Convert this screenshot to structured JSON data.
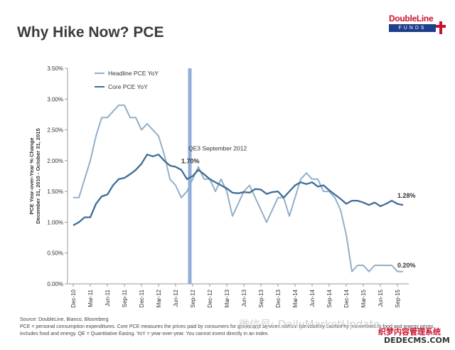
{
  "title": "Why Hike Now? PCE",
  "logo": {
    "top": "DoubleLine",
    "bottom": "FUNDS"
  },
  "footer": {
    "source": "Source: DoubleLine, Bianco, Bloomberg",
    "note1": "PCE = personal consumption expenditures. Core PCE measures the prices paid by consumers for goods and services without the volatility caused by movements in food and energy prices.",
    "note2": "includes food and energy. QE = Quantitative Easing. YoY = year-over-year. You cannot invest directly in an index.",
    "watermark": "微信号: DailyMarketUpdate",
    "watermark2": "织梦内容管理系统",
    "watermark3": "DEDECMS.COM"
  },
  "colors": {
    "headline": "#93afc9",
    "core": "#3f6d96",
    "qe_line": "#7f9fd1",
    "axis": "#999999"
  },
  "chart_data": {
    "type": "line",
    "ylabel": "PCE Year-over-Year % Change\nDecember 31, 2010 - October 31, 2015",
    "ylim": [
      0.0,
      3.5
    ],
    "yticks": [
      "0.00%",
      "0.50%",
      "1.00%",
      "1.50%",
      "2.00%",
      "2.50%",
      "3.00%",
      "3.50%"
    ],
    "x_ticks": [
      "Dec-10",
      "Mar-11",
      "Jun-11",
      "Sep-11",
      "Dec-11",
      "Mar-12",
      "Jun-12",
      "Sep-12",
      "Dec-12",
      "Mar-13",
      "Jun-13",
      "Sep-13",
      "Dec-13",
      "Mar-14",
      "Jun-14",
      "Sep-14",
      "Dec-14",
      "Mar-15",
      "Jun-15",
      "Sep-15"
    ],
    "x_count": 59,
    "series": [
      {
        "name": "Headline PCE YoY",
        "values": [
          1.4,
          1.4,
          1.7,
          2.0,
          2.4,
          2.7,
          2.7,
          2.8,
          2.9,
          2.9,
          2.7,
          2.7,
          2.5,
          2.6,
          2.5,
          2.4,
          2.1,
          1.7,
          1.6,
          1.4,
          1.5,
          1.7,
          1.9,
          1.7,
          1.7,
          1.5,
          1.7,
          1.5,
          1.1,
          1.3,
          1.5,
          1.6,
          1.4,
          1.2,
          1.0,
          1.2,
          1.4,
          1.4,
          1.1,
          1.4,
          1.7,
          1.8,
          1.7,
          1.7,
          1.5,
          1.5,
          1.4,
          1.2,
          0.8,
          0.2,
          0.3,
          0.3,
          0.2,
          0.3,
          0.3,
          0.3,
          0.3,
          0.2,
          0.2
        ]
      },
      {
        "name": "Core PCE YoY",
        "values": [
          0.95,
          1.0,
          1.08,
          1.08,
          1.3,
          1.42,
          1.45,
          1.6,
          1.7,
          1.72,
          1.78,
          1.85,
          1.95,
          2.1,
          2.07,
          2.1,
          2.0,
          1.92,
          1.9,
          1.85,
          1.7,
          1.75,
          1.85,
          1.78,
          1.7,
          1.65,
          1.6,
          1.55,
          1.48,
          1.47,
          1.49,
          1.48,
          1.54,
          1.53,
          1.46,
          1.49,
          1.5,
          1.4,
          1.5,
          1.6,
          1.65,
          1.62,
          1.65,
          1.58,
          1.6,
          1.52,
          1.45,
          1.38,
          1.3,
          1.35,
          1.35,
          1.32,
          1.28,
          1.32,
          1.26,
          1.3,
          1.35,
          1.3,
          1.28
        ]
      }
    ],
    "annotations": {
      "qe_label": "QE3 September 2012",
      "qe_value": "1.70%",
      "qe_index": 20.5,
      "qe_value_y": 1.99,
      "qe_label_y": 2.2,
      "headline_end": "0.20%",
      "headline_end_y": 0.3,
      "core_end": "1.28%",
      "core_end_y": 1.43
    },
    "legend_placement": "top-left"
  }
}
